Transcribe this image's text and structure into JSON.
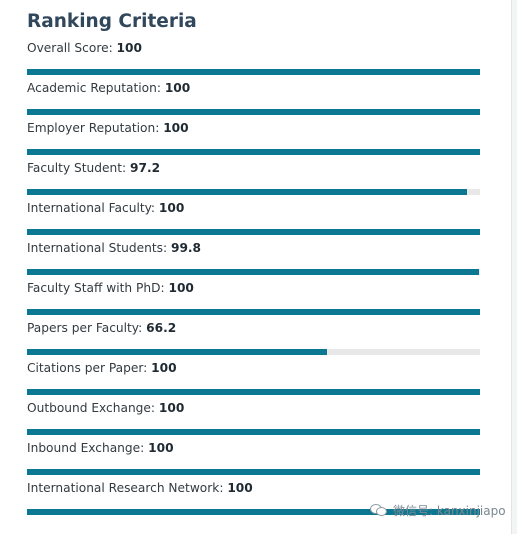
{
  "title": "Ranking Criteria",
  "colors": {
    "bar_fill": "#0c7791",
    "bar_track": "#e8e8e8",
    "title": "#31475c"
  },
  "criteria": [
    {
      "label": "Overall Score:",
      "value": "100",
      "percent": 100
    },
    {
      "label": "Academic Reputation:",
      "value": "100",
      "percent": 100
    },
    {
      "label": "Employer Reputation:",
      "value": "100",
      "percent": 100
    },
    {
      "label": "Faculty Student:",
      "value": "97.2",
      "percent": 97.2
    },
    {
      "label": "International Faculty:",
      "value": "100",
      "percent": 100
    },
    {
      "label": "International Students:",
      "value": "99.8",
      "percent": 99.8
    },
    {
      "label": "Faculty Staff with PhD:",
      "value": "100",
      "percent": 100
    },
    {
      "label": "Papers per Faculty:",
      "value": "66.2",
      "percent": 66.2
    },
    {
      "label": "Citations per Paper:",
      "value": "100",
      "percent": 100
    },
    {
      "label": "Outbound Exchange:",
      "value": "100",
      "percent": 100
    },
    {
      "label": "Inbound Exchange:",
      "value": "100",
      "percent": 100
    },
    {
      "label": "International Research Network:",
      "value": "100",
      "percent": 100
    }
  ],
  "watermark": {
    "icon": "wechat-icon",
    "text": "微信号: kanxinjiapo"
  }
}
